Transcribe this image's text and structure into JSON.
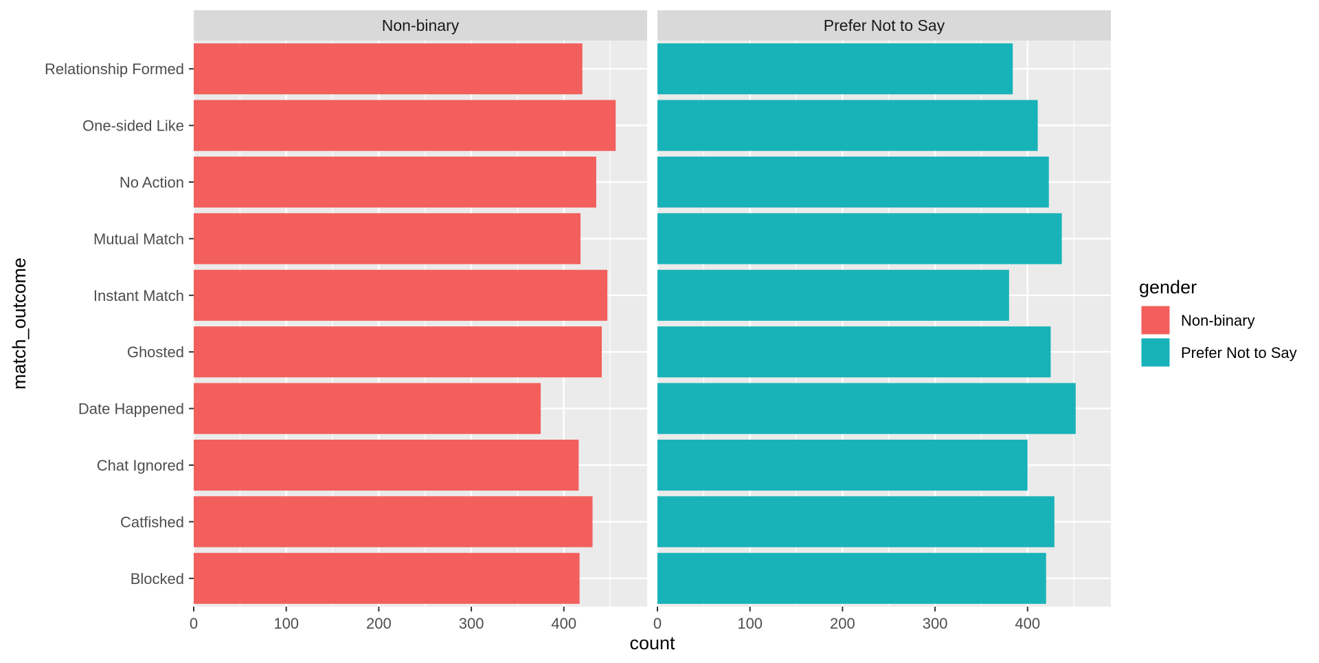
{
  "chart_data": {
    "type": "bar",
    "orientation": "horizontal",
    "facet_by": "gender",
    "xlabel": "count",
    "ylabel": "match_outcome",
    "xlim": [
      0,
      490
    ],
    "x_ticks": [
      0,
      100,
      200,
      300,
      400
    ],
    "grid": true,
    "categories": [
      "Relationship Formed",
      "One-sided Like",
      "No Action",
      "Mutual Match",
      "Instant Match",
      "Ghosted",
      "Date Happened",
      "Chat Ignored",
      "Catfished",
      "Blocked"
    ],
    "series": [
      {
        "name": "Non-binary",
        "color": "#F25F5C",
        "values": [
          420,
          456,
          435,
          418,
          447,
          441,
          375,
          416,
          431,
          417
        ]
      },
      {
        "name": "Prefer Not to Say",
        "color": "#18B3B8",
        "values": [
          384,
          411,
          423,
          437,
          380,
          425,
          452,
          400,
          429,
          420
        ]
      }
    ],
    "legend": {
      "title": "gender",
      "position": "right",
      "entries": [
        "Non-binary",
        "Prefer Not to Say"
      ]
    }
  }
}
